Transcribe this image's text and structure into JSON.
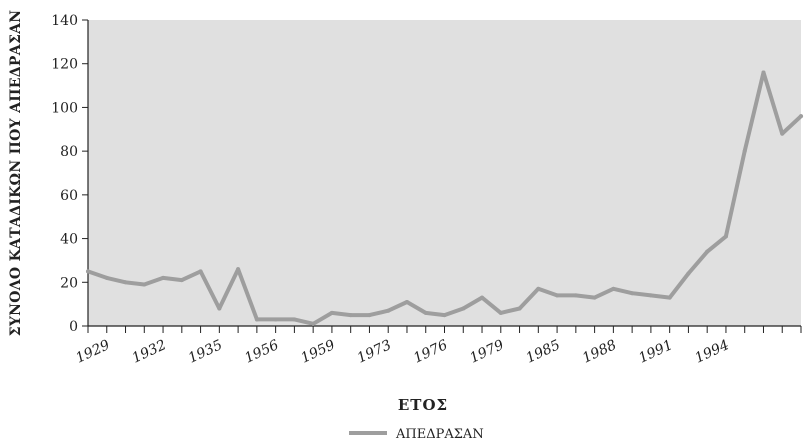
{
  "chart_data": {
    "type": "line",
    "xlabel": "ΕΤΟΣ",
    "ylabel": "ΣΥΝΟΛΟ ΚΑΤΑΔΙΚΩΝ ΠΟΥ ΑΠΕΔΡΑΣΑΝ",
    "ylim": [
      0,
      140
    ],
    "yticks": [
      0,
      20,
      40,
      60,
      80,
      100,
      120,
      140
    ],
    "grid": false,
    "background": "#e0e0e0",
    "line_color": "#9e9e9e",
    "legend_position": "bottom-center",
    "x_tick_labels": [
      {
        "index": 1,
        "label": "1929"
      },
      {
        "index": 4,
        "label": "1932"
      },
      {
        "index": 7,
        "label": "1935"
      },
      {
        "index": 10,
        "label": "1956"
      },
      {
        "index": 13,
        "label": "1959"
      },
      {
        "index": 16,
        "label": "1973"
      },
      {
        "index": 19,
        "label": "1976"
      },
      {
        "index": 22,
        "label": "1979"
      },
      {
        "index": 25,
        "label": "1985"
      },
      {
        "index": 28,
        "label": "1988"
      },
      {
        "index": 31,
        "label": "1991"
      },
      {
        "index": 34,
        "label": "1994"
      }
    ],
    "series": [
      {
        "name": "ΑΠΕΔΡΑΣΑΝ",
        "values": [
          25,
          22,
          20,
          19,
          22,
          21,
          25,
          8,
          26,
          3,
          3,
          3,
          1,
          6,
          5,
          5,
          7,
          11,
          6,
          5,
          8,
          13,
          6,
          8,
          17,
          14,
          14,
          13,
          17,
          15,
          14,
          13,
          24,
          34,
          41,
          80,
          116,
          88,
          96
        ]
      }
    ]
  }
}
